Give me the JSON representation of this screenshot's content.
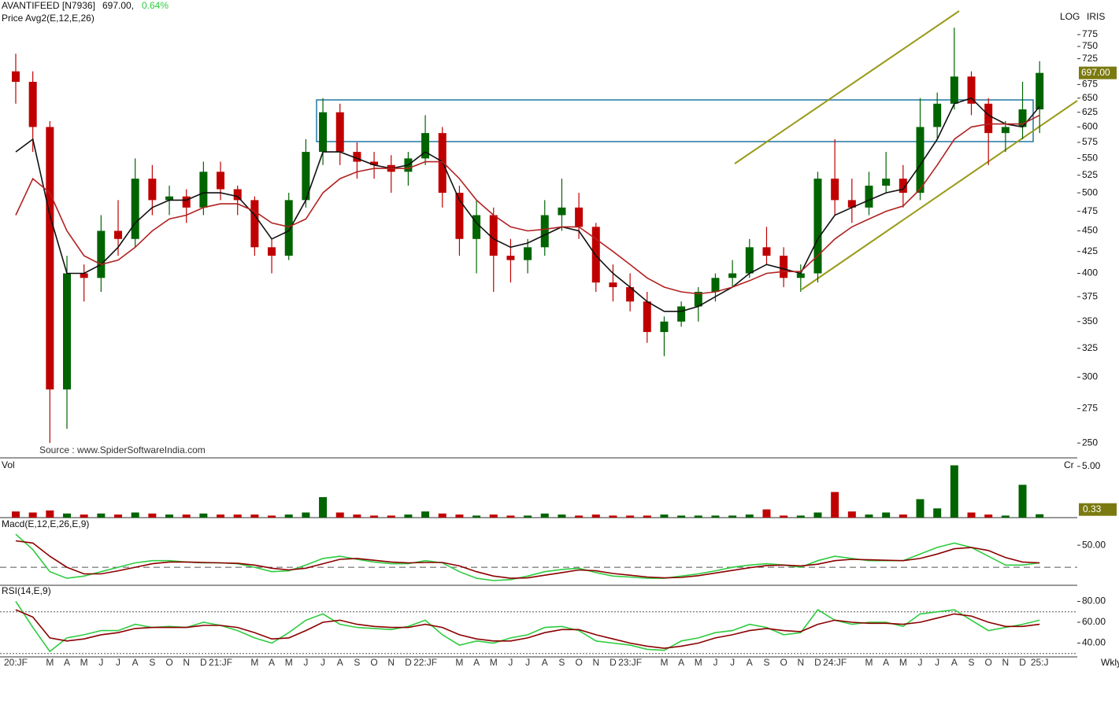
{
  "header": {
    "symbol": "AVANTIFEED [N7936]",
    "last": "697.00,",
    "change": "0.64%",
    "study": "Price  Avg2(E,12,E,26)",
    "scale": "LOG",
    "brand": "IRIS",
    "source": "Source : www.SpiderSoftwareIndia.com",
    "period": "Wkly"
  },
  "chart_data": [
    {
      "type": "candlestick",
      "log": true,
      "ylim": [
        241,
        799
      ],
      "yticks": [
        250,
        275,
        300,
        325,
        350,
        375,
        400,
        425,
        450,
        475,
        500,
        525,
        550,
        575,
        600,
        625,
        650,
        675,
        725,
        750,
        775
      ],
      "last_label": "697.00",
      "categories": [
        "20:JF",
        null,
        "M",
        "A",
        "M",
        "J",
        "J",
        "A",
        "S",
        "O",
        "N",
        "D",
        "21:JF",
        null,
        "M",
        "A",
        "M",
        "J",
        "J",
        "A",
        "S",
        "O",
        "N",
        "D",
        "22:JF",
        null,
        "M",
        "A",
        "M",
        "J",
        "J",
        "A",
        "S",
        "O",
        "N",
        "D",
        "23:JF",
        null,
        "M",
        "A",
        "M",
        "J",
        "J",
        "A",
        "S",
        "O",
        "N",
        "D",
        "24:JF",
        null,
        "M",
        "A",
        "M",
        "J",
        "J",
        "A",
        "S",
        "O",
        "N",
        "D",
        "25:J"
      ],
      "open": [
        700,
        680,
        600,
        290,
        400,
        395,
        450,
        440,
        520,
        490,
        495,
        480,
        530,
        505,
        490,
        430,
        420,
        490,
        560,
        625,
        560,
        545,
        540,
        530,
        550,
        590,
        500,
        440,
        470,
        420,
        415,
        430,
        470,
        480,
        455,
        390,
        385,
        370,
        340,
        350,
        365,
        380,
        395,
        400,
        430,
        420,
        395,
        400,
        520,
        490,
        480,
        510,
        520,
        500,
        600,
        640,
        690,
        640,
        590,
        600,
        630
      ],
      "high": [
        735,
        700,
        610,
        420,
        410,
        470,
        490,
        550,
        540,
        510,
        505,
        545,
        545,
        510,
        495,
        440,
        500,
        580,
        650,
        640,
        575,
        560,
        555,
        560,
        620,
        600,
        510,
        490,
        480,
        440,
        440,
        490,
        520,
        500,
        460,
        410,
        400,
        380,
        355,
        370,
        385,
        400,
        415,
        440,
        455,
        430,
        410,
        530,
        580,
        520,
        530,
        560,
        540,
        650,
        660,
        790,
        700,
        650,
        610,
        680,
        720
      ],
      "low": [
        640,
        560,
        250,
        260,
        370,
        380,
        420,
        430,
        470,
        470,
        460,
        470,
        490,
        470,
        420,
        400,
        415,
        480,
        540,
        540,
        520,
        520,
        500,
        510,
        540,
        480,
        420,
        400,
        380,
        390,
        400,
        420,
        450,
        440,
        380,
        370,
        360,
        330,
        318,
        345,
        350,
        370,
        385,
        395,
        410,
        385,
        380,
        390,
        470,
        460,
        470,
        500,
        480,
        490,
        580,
        630,
        620,
        540,
        560,
        580,
        590
      ],
      "close": [
        680,
        600,
        290,
        400,
        395,
        450,
        440,
        520,
        490,
        495,
        480,
        530,
        505,
        490,
        430,
        420,
        490,
        560,
        625,
        560,
        545,
        540,
        530,
        550,
        590,
        500,
        440,
        470,
        420,
        415,
        430,
        470,
        480,
        455,
        390,
        385,
        370,
        340,
        350,
        365,
        380,
        395,
        400,
        430,
        420,
        395,
        400,
        520,
        490,
        480,
        510,
        520,
        500,
        600,
        640,
        690,
        640,
        590,
        600,
        630,
        697
      ],
      "series": [
        {
          "name": "E12",
          "color": "#111111",
          "values": [
            560,
            580,
            470,
            400,
            400,
            410,
            430,
            460,
            480,
            490,
            490,
            500,
            500,
            495,
            470,
            440,
            450,
            490,
            560,
            560,
            550,
            540,
            535,
            540,
            560,
            545,
            490,
            460,
            440,
            430,
            435,
            445,
            455,
            450,
            420,
            400,
            385,
            370,
            360,
            360,
            365,
            375,
            385,
            400,
            410,
            405,
            400,
            440,
            470,
            480,
            490,
            500,
            505,
            540,
            580,
            640,
            650,
            620,
            605,
            600,
            635
          ]
        },
        {
          "name": "E26",
          "color": "#b22222",
          "values": [
            470,
            520,
            500,
            450,
            420,
            410,
            415,
            430,
            450,
            465,
            470,
            480,
            485,
            485,
            475,
            460,
            455,
            465,
            500,
            520,
            530,
            535,
            535,
            535,
            545,
            545,
            520,
            490,
            470,
            455,
            450,
            452,
            455,
            455,
            440,
            425,
            410,
            395,
            385,
            380,
            378,
            380,
            385,
            392,
            400,
            402,
            402,
            420,
            440,
            455,
            465,
            475,
            482,
            505,
            540,
            580,
            600,
            605,
            605,
            605,
            620
          ]
        }
      ]
    },
    {
      "type": "bar",
      "title": "Vol",
      "unit": "Cr",
      "ylim": [
        0,
        5.6
      ],
      "yticks": [
        {
          "value": 5,
          "label": "5.00"
        }
      ],
      "last_label": "0.33",
      "values": [
        0.6,
        0.5,
        0.7,
        0.4,
        0.3,
        0.4,
        0.3,
        0.5,
        0.4,
        0.3,
        0.3,
        0.4,
        0.3,
        0.3,
        0.3,
        0.2,
        0.3,
        0.5,
        2.0,
        0.5,
        0.3,
        0.2,
        0.2,
        0.3,
        0.6,
        0.4,
        0.3,
        0.2,
        0.3,
        0.2,
        0.2,
        0.4,
        0.3,
        0.2,
        0.3,
        0.2,
        0.2,
        0.2,
        0.3,
        0.2,
        0.2,
        0.2,
        0.2,
        0.3,
        0.8,
        0.2,
        0.2,
        0.5,
        2.5,
        0.6,
        0.3,
        0.5,
        0.3,
        1.8,
        0.9,
        5.1,
        0.5,
        0.3,
        0.2,
        3.2,
        0.33
      ]
    },
    {
      "type": "line",
      "title": "Macd(E,12,E,26,E,9)",
      "ylim": [
        -39,
        109
      ],
      "yticks": [
        {
          "value": 50,
          "label": "50.00"
        }
      ],
      "levels": [
        0
      ],
      "series": [
        {
          "name": "MACD",
          "color": "#2ecc40",
          "values": [
            75,
            40,
            -10,
            -25,
            -20,
            -10,
            0,
            10,
            15,
            15,
            12,
            10,
            10,
            8,
            0,
            -10,
            -8,
            5,
            20,
            25,
            18,
            12,
            8,
            8,
            15,
            10,
            -10,
            -25,
            -30,
            -28,
            -20,
            -10,
            -5,
            -2,
            -12,
            -20,
            -22,
            -25,
            -25,
            -20,
            -15,
            -8,
            0,
            5,
            8,
            5,
            0,
            15,
            25,
            20,
            15,
            15,
            15,
            30,
            45,
            55,
            45,
            25,
            5,
            5,
            10
          ]
        },
        {
          "name": "Signal",
          "color": "#8b0000",
          "values": [
            60,
            55,
            25,
            0,
            -15,
            -15,
            -8,
            0,
            8,
            12,
            12,
            11,
            10,
            9,
            5,
            -2,
            -6,
            -2,
            8,
            18,
            20,
            16,
            12,
            10,
            11,
            11,
            3,
            -10,
            -20,
            -25,
            -24,
            -18,
            -12,
            -6,
            -8,
            -14,
            -18,
            -22,
            -24,
            -23,
            -19,
            -13,
            -7,
            -1,
            4,
            5,
            3,
            7,
            15,
            18,
            17,
            16,
            15,
            20,
            30,
            42,
            45,
            38,
            22,
            12,
            10
          ]
        }
      ]
    },
    {
      "type": "line",
      "title": "RSI(14,E,9)",
      "ylim": [
        26,
        94
      ],
      "yticks": [
        {
          "value": 80,
          "label": "80.00"
        },
        {
          "value": 60,
          "label": "60.00"
        },
        {
          "value": 40,
          "label": "40.00"
        }
      ],
      "levels": [
        70,
        30
      ],
      "series": [
        {
          "name": "RSI",
          "color": "#2ecc40",
          "values": [
            80,
            55,
            32,
            45,
            48,
            52,
            52,
            58,
            55,
            56,
            55,
            60,
            57,
            52,
            45,
            40,
            50,
            62,
            68,
            58,
            55,
            54,
            53,
            56,
            62,
            48,
            38,
            42,
            40,
            45,
            48,
            55,
            56,
            52,
            42,
            40,
            38,
            34,
            33,
            42,
            45,
            50,
            52,
            58,
            55,
            48,
            50,
            72,
            62,
            58,
            60,
            60,
            56,
            68,
            70,
            72,
            62,
            52,
            55,
            58,
            62
          ]
        },
        {
          "name": "Avg",
          "color": "#8b0000",
          "values": [
            72,
            65,
            45,
            42,
            44,
            48,
            50,
            54,
            55,
            55,
            55,
            57,
            57,
            55,
            50,
            44,
            45,
            52,
            60,
            62,
            58,
            56,
            55,
            55,
            58,
            55,
            48,
            44,
            42,
            42,
            45,
            50,
            53,
            53,
            48,
            44,
            40,
            37,
            35,
            37,
            40,
            45,
            48,
            52,
            54,
            52,
            51,
            58,
            62,
            60,
            59,
            59,
            58,
            60,
            64,
            68,
            66,
            60,
            56,
            56,
            58
          ]
        }
      ]
    }
  ]
}
